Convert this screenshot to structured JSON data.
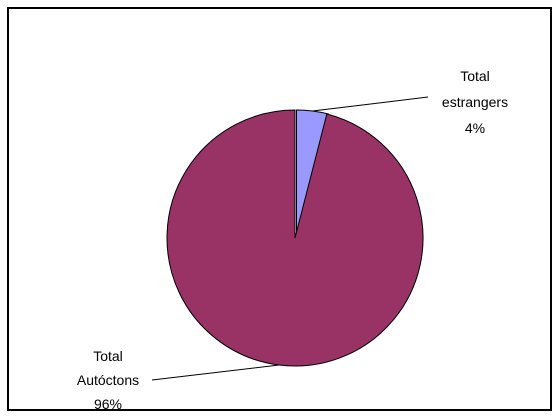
{
  "chart_data": {
    "type": "pie",
    "title": "",
    "slices": [
      {
        "label_lines": [
          "Total",
          "estrangers"
        ],
        "percent_label": "4%",
        "value": 4,
        "color": "#9999ff"
      },
      {
        "label_lines": [
          "Total",
          "Autóctons"
        ],
        "percent_label": "96%",
        "value": 96,
        "color": "#993366"
      }
    ],
    "exploded_slice": 0,
    "start_angle_deg": 0,
    "direction": "clockwise",
    "legend": "none"
  }
}
